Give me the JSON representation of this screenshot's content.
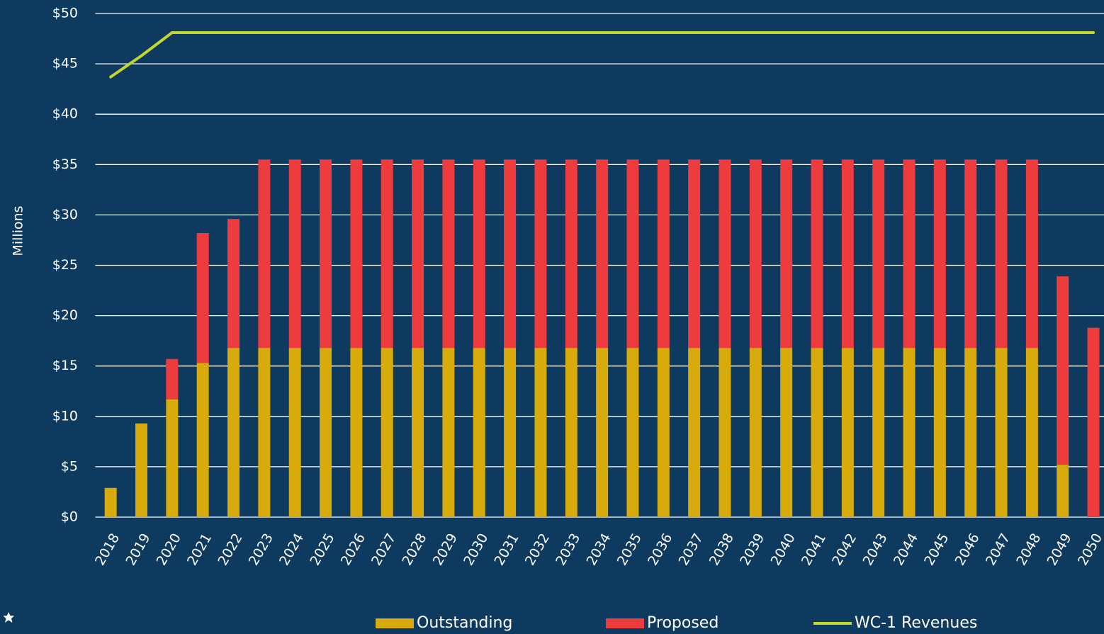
{
  "chart_data": {
    "type": "bar",
    "y_axis_label": "Millions",
    "categories": [
      "2018",
      "2019",
      "2020",
      "2021",
      "2022",
      "2023",
      "2024",
      "2025",
      "2026",
      "2027",
      "2028",
      "2029",
      "2030",
      "2031",
      "2032",
      "2033",
      "2034",
      "2035",
      "2036",
      "2037",
      "2038",
      "2039",
      "2040",
      "2041",
      "2042",
      "2043",
      "2044",
      "2045",
      "2046",
      "2047",
      "2048",
      "2049",
      "2050"
    ],
    "series": [
      {
        "name": "Outstanding",
        "color": "#d6ab0b",
        "kind": "bar",
        "values": [
          2.9,
          9.3,
          11.7,
          15.3,
          16.8,
          16.8,
          16.8,
          16.8,
          16.8,
          16.8,
          16.8,
          16.8,
          16.8,
          16.8,
          16.8,
          16.8,
          16.8,
          16.8,
          16.8,
          16.8,
          16.8,
          16.8,
          16.8,
          16.8,
          16.8,
          16.8,
          16.8,
          16.8,
          16.8,
          16.8,
          16.8,
          5.2,
          0
        ]
      },
      {
        "name": "Proposed",
        "color": "#ee3b3e",
        "kind": "bar",
        "values": [
          0,
          0,
          4.0,
          12.9,
          12.8,
          18.7,
          18.7,
          18.7,
          18.7,
          18.7,
          18.7,
          18.7,
          18.7,
          18.7,
          18.7,
          18.7,
          18.7,
          18.7,
          18.7,
          18.7,
          18.7,
          18.7,
          18.7,
          18.7,
          18.7,
          18.7,
          18.7,
          18.7,
          18.7,
          18.7,
          18.7,
          18.7,
          18.8
        ]
      },
      {
        "name": "WC-1 Revenues",
        "color": "#c3d62e",
        "kind": "line",
        "values": [
          43.7,
          45.8,
          48.1,
          48.1,
          48.1,
          48.1,
          48.1,
          48.1,
          48.1,
          48.1,
          48.1,
          48.1,
          48.1,
          48.1,
          48.1,
          48.1,
          48.1,
          48.1,
          48.1,
          48.1,
          48.1,
          48.1,
          48.1,
          48.1,
          48.1,
          48.1,
          48.1,
          48.1,
          48.1,
          48.1,
          48.1,
          48.1,
          48.1
        ]
      }
    ],
    "stacked": true,
    "ylim": [
      0,
      50
    ],
    "yticks": [
      {
        "value": 0,
        "label": "$0"
      },
      {
        "value": 5,
        "label": "$5"
      },
      {
        "value": 10,
        "label": "$10"
      },
      {
        "value": 15,
        "label": "$15"
      },
      {
        "value": 20,
        "label": "$20"
      },
      {
        "value": 25,
        "label": "$25"
      },
      {
        "value": 30,
        "label": "$30"
      },
      {
        "value": 35,
        "label": "$35"
      },
      {
        "value": 40,
        "label": "$40"
      },
      {
        "value": 45,
        "label": "$45"
      },
      {
        "value": 50,
        "label": "$50"
      }
    ],
    "grid": true,
    "legend": "bottom"
  }
}
